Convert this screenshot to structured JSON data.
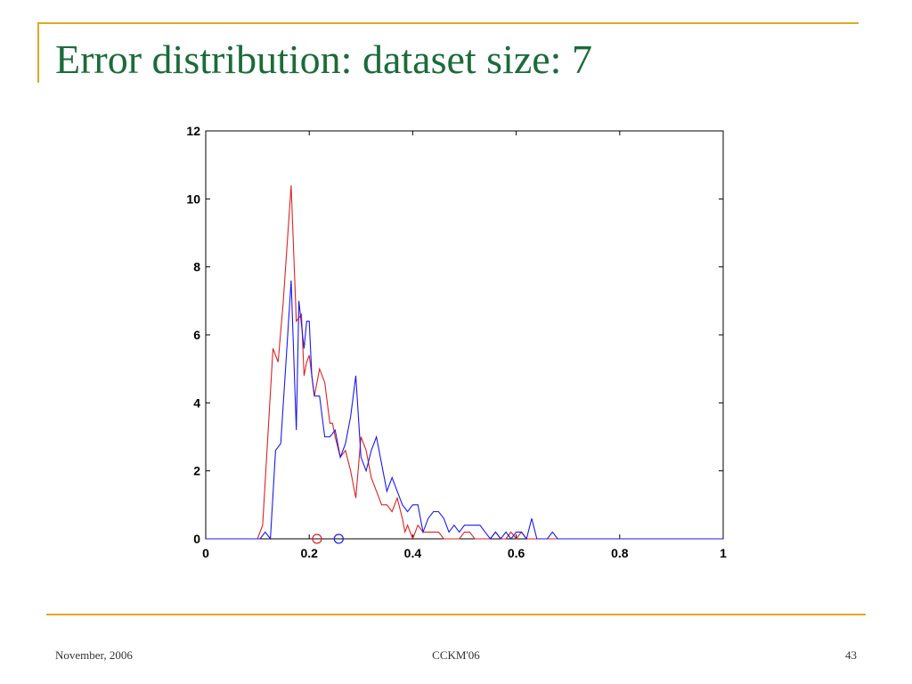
{
  "slide": {
    "title": "Error distribution: dataset size: 7",
    "footer_left": "November, 2006",
    "footer_center": "CCKM'06",
    "footer_right": "43"
  },
  "colors": {
    "accent": "#e0a822",
    "title": "#1b6b3a",
    "series_red": "#dd2222",
    "series_blue": "#1a1aee"
  },
  "chart_data": {
    "type": "line",
    "title": "",
    "xlabel": "",
    "ylabel": "",
    "xlim": [
      0,
      1
    ],
    "ylim": [
      0,
      12
    ],
    "xticks": [
      0,
      0.2,
      0.4,
      0.6,
      0.8,
      1
    ],
    "xtick_labels": [
      "0",
      "0.2",
      "0.4",
      "0.6",
      "0.8",
      "1"
    ],
    "yticks": [
      0,
      2,
      4,
      6,
      8,
      10,
      12
    ],
    "ytick_labels": [
      "0",
      "2",
      "4",
      "6",
      "8",
      "10",
      "12"
    ],
    "grid": false,
    "series": [
      {
        "color": "#dd2222",
        "x": [
          0,
          0.1,
          0.11,
          0.13,
          0.14,
          0.15,
          0.165,
          0.175,
          0.185,
          0.19,
          0.195,
          0.2,
          0.205,
          0.21,
          0.22,
          0.23,
          0.24,
          0.245,
          0.25,
          0.26,
          0.27,
          0.28,
          0.29,
          0.3,
          0.31,
          0.32,
          0.33,
          0.34,
          0.35,
          0.36,
          0.37,
          0.38,
          0.385,
          0.39,
          0.4,
          0.41,
          0.42,
          0.43,
          0.45,
          0.46,
          0.47,
          0.49,
          0.5,
          0.51,
          0.52,
          0.55,
          0.56,
          0.57,
          0.58,
          0.59,
          0.6,
          0.61,
          0.62,
          1
        ],
        "y": [
          0,
          0,
          0.4,
          5.6,
          5.2,
          7.0,
          10.4,
          6.4,
          6.6,
          4.8,
          5.2,
          5.4,
          4.8,
          4.2,
          5.0,
          4.6,
          3.4,
          3.4,
          3.0,
          2.4,
          2.6,
          2.0,
          1.2,
          3.0,
          2.6,
          1.8,
          1.4,
          1.0,
          1.0,
          0.8,
          1.2,
          0.6,
          0.2,
          0.4,
          0.0,
          0.4,
          0.2,
          0.2,
          0.2,
          0.0,
          0.0,
          0.0,
          0.2,
          0.2,
          0.0,
          0.0,
          0.2,
          0.0,
          0.0,
          0.2,
          0.0,
          0.2,
          0.0,
          0
        ]
      },
      {
        "color": "#1a1aee",
        "x": [
          0,
          0.105,
          0.115,
          0.125,
          0.135,
          0.145,
          0.155,
          0.165,
          0.175,
          0.18,
          0.19,
          0.195,
          0.2,
          0.205,
          0.21,
          0.22,
          0.23,
          0.24,
          0.25,
          0.26,
          0.27,
          0.28,
          0.29,
          0.3,
          0.31,
          0.32,
          0.33,
          0.34,
          0.35,
          0.36,
          0.37,
          0.38,
          0.39,
          0.4,
          0.41,
          0.42,
          0.43,
          0.44,
          0.45,
          0.46,
          0.47,
          0.48,
          0.49,
          0.5,
          0.51,
          0.52,
          0.53,
          0.54,
          0.55,
          0.56,
          0.57,
          0.58,
          0.59,
          0.6,
          0.61,
          0.62,
          0.63,
          0.64,
          0.65,
          0.66,
          0.67,
          0.68,
          1
        ],
        "y": [
          0,
          0,
          0.2,
          0,
          2.6,
          2.8,
          5.2,
          7.6,
          3.2,
          7.0,
          5.6,
          6.4,
          6.4,
          4.8,
          4.2,
          4.2,
          3.0,
          3.0,
          3.2,
          2.4,
          2.8,
          3.6,
          4.8,
          2.4,
          2.0,
          2.6,
          3.0,
          2.2,
          1.4,
          1.8,
          1.4,
          1.0,
          0.8,
          1.0,
          1.0,
          0.2,
          0.6,
          0.8,
          0.8,
          0.6,
          0.2,
          0.4,
          0.2,
          0.4,
          0.4,
          0.4,
          0.4,
          0.2,
          0.0,
          0.2,
          0.0,
          0.2,
          0.0,
          0.2,
          0.2,
          0.0,
          0.6,
          0.0,
          0.0,
          0.0,
          0.2,
          0.0,
          0
        ]
      }
    ],
    "markers": [
      {
        "color": "#dd2222",
        "x": 0.215,
        "y": 0,
        "shape": "circle"
      },
      {
        "color": "#1a1aee",
        "x": 0.257,
        "y": 0,
        "shape": "circle"
      }
    ]
  }
}
